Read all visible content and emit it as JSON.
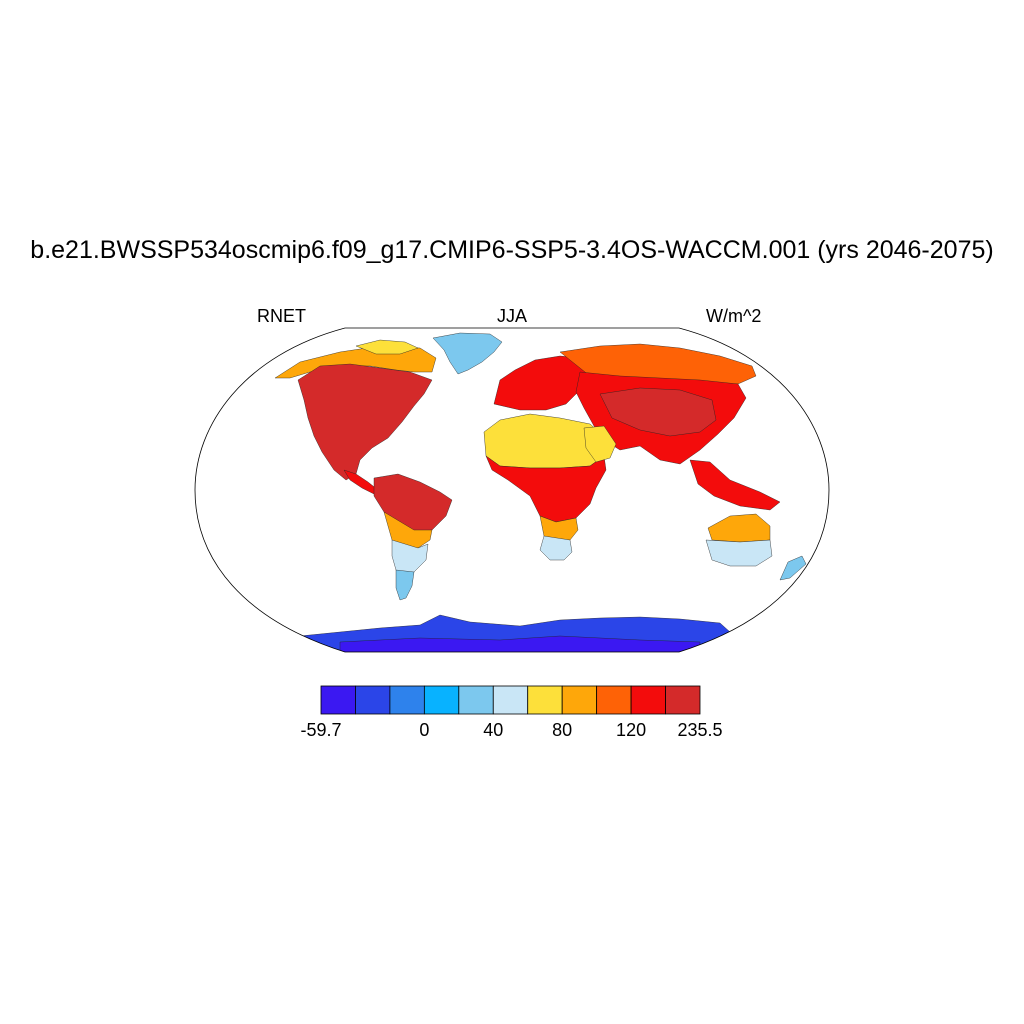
{
  "title": "b.e21.BWSSP534oscmip6.f09_g17.CMIP6-SSP5-3.4OS-WACCM.001 (yrs 2046-2075)",
  "left_label": "RNET",
  "center_label": "JJA",
  "right_label": "W/m^2",
  "colorbar": {
    "colors": [
      "#3b18f2",
      "#2b45e8",
      "#2e82ec",
      "#08b2ff",
      "#7cc8ee",
      "#c9e6f6",
      "#fde03a",
      "#fea70a",
      "#fe6206",
      "#f30c0c",
      "#d42a2a"
    ],
    "labels": [
      "-59.7",
      "",
      "0",
      "40",
      "80",
      "120",
      "235.5"
    ]
  },
  "map_colors": {
    "antarctica": "#2b45e8",
    "antarctica_dark": "#3b18f2",
    "greenland": "#7cc8ee",
    "greenland_light": "#c9e6f6",
    "hot": "#d42a2a",
    "red": "#f30c0c",
    "orange": "#fe6206",
    "amber": "#fea70a",
    "yellow": "#fde03a",
    "pale": "#c9e6f6",
    "light_blue": "#7cc8ee"
  }
}
